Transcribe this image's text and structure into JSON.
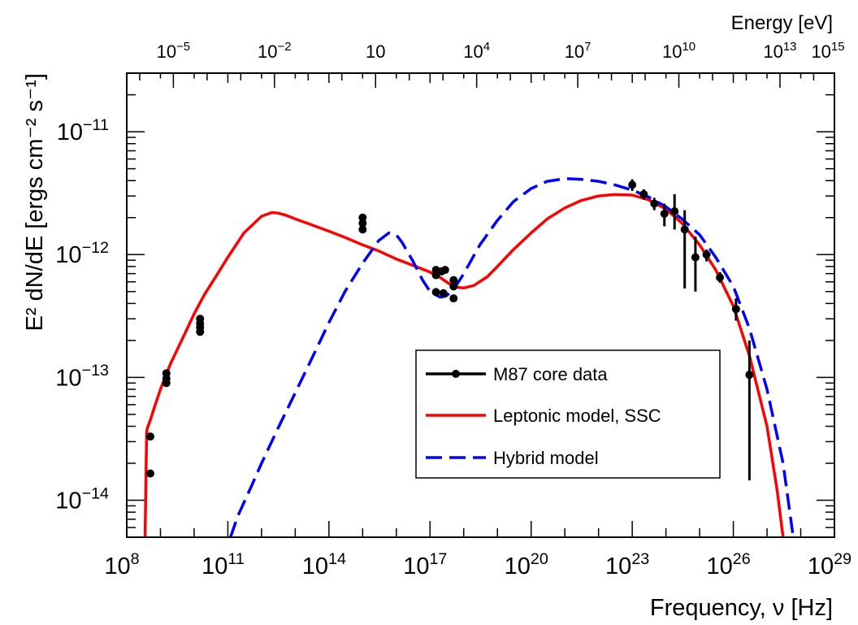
{
  "chart_data": {
    "type": "scatter",
    "xlabel": "Frequency, ν [Hz]",
    "ylabel": "E² dN/dE [ergs cm⁻² s⁻¹]",
    "top_axis_label": "Energy [eV]",
    "x_scale": "log",
    "y_scale": "log",
    "xlim": [
      100000000.0,
      1e+29
    ],
    "ylim": [
      5e-15,
      3e-11
    ],
    "grid": false,
    "legend_position": "center-right",
    "x_ticks": [
      {
        "exp": "8"
      },
      {
        "exp": "11"
      },
      {
        "exp": "14"
      },
      {
        "exp": "17"
      },
      {
        "exp": "20"
      },
      {
        "exp": "23"
      },
      {
        "exp": "26"
      },
      {
        "exp": "29"
      }
    ],
    "y_ticks": [
      {
        "exp": "−11"
      },
      {
        "exp": "−12"
      },
      {
        "exp": "−13"
      },
      {
        "exp": "−14"
      }
    ],
    "top_ticks": [
      {
        "base": "10",
        "exp": "−5"
      },
      {
        "base": "10",
        "exp": "−2"
      },
      {
        "base": "10",
        "exp": ""
      },
      {
        "base": "10",
        "exp": "4"
      },
      {
        "base": "10",
        "exp": "7"
      },
      {
        "base": "10",
        "exp": "10"
      },
      {
        "base": "10",
        "exp": "13"
      },
      {
        "base": "10",
        "exp": "15"
      }
    ],
    "series": [
      {
        "name": "M87 core data",
        "color": "#000000",
        "points": [
          {
            "x": 500000000.0,
            "y": 3.3e-14,
            "ylo": 3.1e-14,
            "yhi": 3.5e-14
          },
          {
            "x": 500000000.0,
            "y": 1.65e-14,
            "ylo": 1.55e-14,
            "yhi": 1.75e-14
          },
          {
            "x": 1500000000.0,
            "y": 1.08e-13,
            "ylo": 1e-13,
            "yhi": 1.16e-13
          },
          {
            "x": 1500000000.0,
            "y": 9.8e-14,
            "ylo": 9.2e-14,
            "yhi": 1.04e-13
          },
          {
            "x": 1500000000.0,
            "y": 9e-14,
            "ylo": 8.5e-14,
            "yhi": 9.5e-14
          },
          {
            "x": 15000000000.0,
            "y": 3e-13,
            "ylo": 2.85e-13,
            "yhi": 3.15e-13
          },
          {
            "x": 15000000000.0,
            "y": 2.75e-13,
            "ylo": 2.6e-13,
            "yhi": 2.9e-13
          },
          {
            "x": 15000000000.0,
            "y": 2.55e-13,
            "ylo": 2.4e-13,
            "yhi": 2.7e-13
          },
          {
            "x": 15000000000.0,
            "y": 2.35e-13,
            "ylo": 2.2e-13,
            "yhi": 2.5e-13
          },
          {
            "x": 1000000000000000.0,
            "y": 2e-12,
            "ylo": 1.9e-12,
            "yhi": 2.1e-12
          },
          {
            "x": 1000000000000000.0,
            "y": 1.8e-12,
            "ylo": 1.7e-12,
            "yhi": 1.9e-12
          },
          {
            "x": 1000000000000000.0,
            "y": 1.6e-12,
            "ylo": 1.5e-12,
            "yhi": 1.7e-12
          },
          {
            "x": 1.5e+17,
            "y": 7.5e-13,
            "ylo": 7.1e-13,
            "yhi": 7.9e-13
          },
          {
            "x": 1.5e+17,
            "y": 6.8e-13,
            "ylo": 6.4e-13,
            "yhi": 7.2e-13
          },
          {
            "x": 1.5e+17,
            "y": 4.95e-13,
            "ylo": 4.8e-13,
            "yhi": 5.1e-13
          },
          {
            "x": 2.2e+17,
            "y": 7.3e-13,
            "ylo": 7e-13,
            "yhi": 7.6e-13
          },
          {
            "x": 2.5e+17,
            "y": 4.85e-13,
            "ylo": 4.7e-13,
            "yhi": 5e-13
          },
          {
            "x": 2.8e+17,
            "y": 7.5e-13,
            "ylo": 7.2e-13,
            "yhi": 7.8e-13
          },
          {
            "x": 5e+17,
            "y": 6.2e-13,
            "ylo": 5.9e-13,
            "yhi": 6.5e-13
          },
          {
            "x": 5e+17,
            "y": 5.5e-13,
            "ylo": 5.2e-13,
            "yhi": 5.8e-13
          },
          {
            "x": 5e+17,
            "y": 4.4e-13,
            "ylo": 4.2e-13,
            "yhi": 4.7e-13
          },
          {
            "x": 1e+23,
            "y": 3.7e-12,
            "ylo": 3.3e-12,
            "yhi": 4.1e-12
          },
          {
            "x": 2.2e+23,
            "y": 3.1e-12,
            "ylo": 2.8e-12,
            "yhi": 3.4e-12
          },
          {
            "x": 4.5e+23,
            "y": 2.6e-12,
            "ylo": 2.3e-12,
            "yhi": 2.9e-12
          },
          {
            "x": 9e+23,
            "y": 2.15e-12,
            "ylo": 1.7e-12,
            "yhi": 2.6e-12
          },
          {
            "x": 1.8e+24,
            "y": 2.25e-12,
            "ylo": 1.6e-12,
            "yhi": 3.1e-12
          },
          {
            "x": 3.6e+24,
            "y": 1.6e-12,
            "ylo": 5.3e-13,
            "yhi": 2.3e-12
          },
          {
            "x": 7.5e+24,
            "y": 9.5e-13,
            "ylo": 5e-13,
            "yhi": 1.4e-12
          },
          {
            "x": 1.6e+25,
            "y": 1e-12,
            "ylo": 8.8e-13,
            "yhi": 1.1e-12
          },
          {
            "x": 4e+25,
            "y": 6.5e-13,
            "ylo": 5.9e-13,
            "yhi": 7.2e-13
          },
          {
            "x": 1.2e+26,
            "y": 3.6e-13,
            "ylo": 2.9e-13,
            "yhi": 4.4e-13
          },
          {
            "x": 3e+26,
            "y": 1.05e-13,
            "ylo": 1.45e-14,
            "yhi": 2e-13
          }
        ]
      },
      {
        "name": "Leptonic model, SSC",
        "color": "#ff0000",
        "style": "solid",
        "x": [
          350000000.0,
          370000000.0,
          390000000.0,
          400000000.0,
          500000000.0,
          700000000.0,
          1000000000.0,
          2000000000.0,
          5000000000.0,
          10000000000.0,
          20000000000.0,
          50000000000.0,
          100000000000.0,
          300000000000.0,
          1000000000000.0,
          2000000000000.0,
          3000000000000.0,
          5000000000000.0,
          10000000000000.0,
          30000000000000.0,
          100000000000000.0,
          300000000000000.0,
          1000000000000000.0,
          3000000000000000.0,
          1e+16,
          3e+16,
          1e+17,
          2e+17,
          4e+17,
          7e+17,
          1e+18,
          2e+18,
          5e+18,
          1e+19,
          3e+19,
          1e+20,
          3e+20,
          1e+21,
          3e+21,
          1e+22,
          3e+22,
          1e+23,
          3e+23,
          1e+24,
          3e+24,
          1e+25,
          3e+25,
          1e+26,
          3e+26,
          1e+27,
          2e+27,
          3e+27
        ],
        "y": [
          5e-15,
          1.5e-14,
          3.5e-14,
          3.8e-14,
          4.5e-14,
          6e-14,
          8e-14,
          1.3e-13,
          2.2e-13,
          3.3e-13,
          4.7e-13,
          7e-13,
          9.5e-13,
          1.5e-12,
          2.05e-12,
          2.2e-12,
          2.18e-12,
          2.1e-12,
          1.95e-12,
          1.75e-12,
          1.55e-12,
          1.38e-12,
          1.2e-12,
          1.07e-12,
          9.2e-13,
          8.2e-13,
          7.2e-13,
          6.5e-13,
          5.7e-13,
          5.4e-13,
          5.35e-13,
          5.6e-13,
          6.6e-13,
          8e-13,
          1.1e-12,
          1.5e-12,
          1.95e-12,
          2.4e-12,
          2.75e-12,
          3e-12,
          3.08e-12,
          3.05e-12,
          2.8e-12,
          2.35e-12,
          1.8e-12,
          1.2e-12,
          7.5e-13,
          3.8e-13,
          1.5e-13,
          4e-14,
          1.2e-14,
          5e-15
        ]
      },
      {
        "name": "Hybrid model",
        "color": "#0000ff",
        "style": "dashed",
        "x": [
          120000000000.0,
          200000000000.0,
          500000000000.0,
          1000000000000.0,
          3000000000000.0,
          10000000000000.0,
          30000000000000.0,
          100000000000000.0,
          300000000000000.0,
          1000000000000000.0,
          3000000000000000.0,
          6000000000000000.0,
          1e+16,
          1.5e+16,
          3e+16,
          6e+16,
          1e+17,
          2e+17,
          3e+17,
          5e+17,
          1e+18,
          3e+18,
          1e+19,
          3e+19,
          1e+20,
          3e+20,
          1e+21,
          3e+21,
          1e+22,
          3e+22,
          1e+23,
          3e+23,
          1e+24,
          3e+24,
          1e+25,
          3e+25,
          1e+26,
          3e+26,
          1e+27,
          3e+27,
          6e+27
        ],
        "y": [
          5e-15,
          7.5e-15,
          1.3e-14,
          2e-14,
          3.8e-14,
          7.5e-14,
          1.4e-13,
          2.8e-13,
          5e-13,
          8.5e-13,
          1.3e-12,
          1.5e-12,
          1.45e-12,
          1.25e-12,
          9e-13,
          6.2e-13,
          5e-13,
          4.5e-13,
          4.6e-13,
          5.2e-13,
          7e-13,
          1.2e-12,
          1.9e-12,
          2.7e-12,
          3.45e-12,
          3.95e-12,
          4.15e-12,
          4.1e-12,
          3.95e-12,
          3.7e-12,
          3.35e-12,
          2.95e-12,
          2.45e-12,
          1.95e-12,
          1.45e-12,
          9.5e-13,
          5.5e-13,
          2.5e-13,
          8e-14,
          2e-14,
          5e-15
        ]
      }
    ]
  }
}
